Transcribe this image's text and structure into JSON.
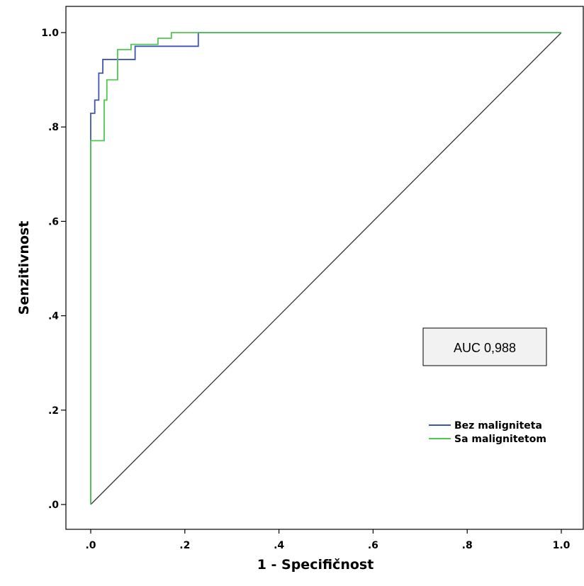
{
  "chart_data": {
    "type": "line",
    "xlabel": "1 - Specifičnost",
    "ylabel": "Senzitivnost",
    "xlim": [
      0.0,
      1.0
    ],
    "ylim": [
      0.0,
      1.0
    ],
    "x_ticks": [
      ".0",
      ".2",
      ".4",
      ".6",
      ".8",
      "1.0"
    ],
    "y_ticks": [
      ".0",
      ".2",
      ".4",
      ".6",
      ".8",
      "1.0"
    ],
    "grid": false,
    "legend_position": "right",
    "annotation": "AUC 0,988",
    "series": [
      {
        "name": "Bez maligniteta",
        "color": "#3d55b8",
        "x": [
          0.0,
          0.0,
          0.0086,
          0.0086,
          0.0171,
          0.0171,
          0.0257,
          0.0257,
          0.0343,
          0.0343,
          0.0486,
          0.0486,
          0.0943,
          0.0943,
          0.2286,
          0.2286,
          1.0
        ],
        "y": [
          0.0,
          0.829,
          0.829,
          0.857,
          0.857,
          0.914,
          0.914,
          0.943,
          0.943,
          0.943,
          0.943,
          0.943,
          0.943,
          0.971,
          0.971,
          1.0,
          1.0
        ]
      },
      {
        "name": "Sa malignitetom",
        "color": "#4ec94e",
        "x": [
          0.0,
          0.0,
          0.0286,
          0.0286,
          0.0343,
          0.0343,
          0.0571,
          0.0571,
          0.0857,
          0.0857,
          0.1429,
          0.1429,
          0.1714,
          0.1714,
          1.0
        ],
        "y": [
          0.0,
          0.771,
          0.771,
          0.857,
          0.857,
          0.9,
          0.9,
          0.964,
          0.964,
          0.975,
          0.975,
          0.988,
          0.988,
          1.0,
          1.0
        ]
      },
      {
        "name": "",
        "color": "#333333",
        "x": [
          0.0,
          1.0
        ],
        "y": [
          0.0,
          1.0
        ]
      }
    ]
  }
}
